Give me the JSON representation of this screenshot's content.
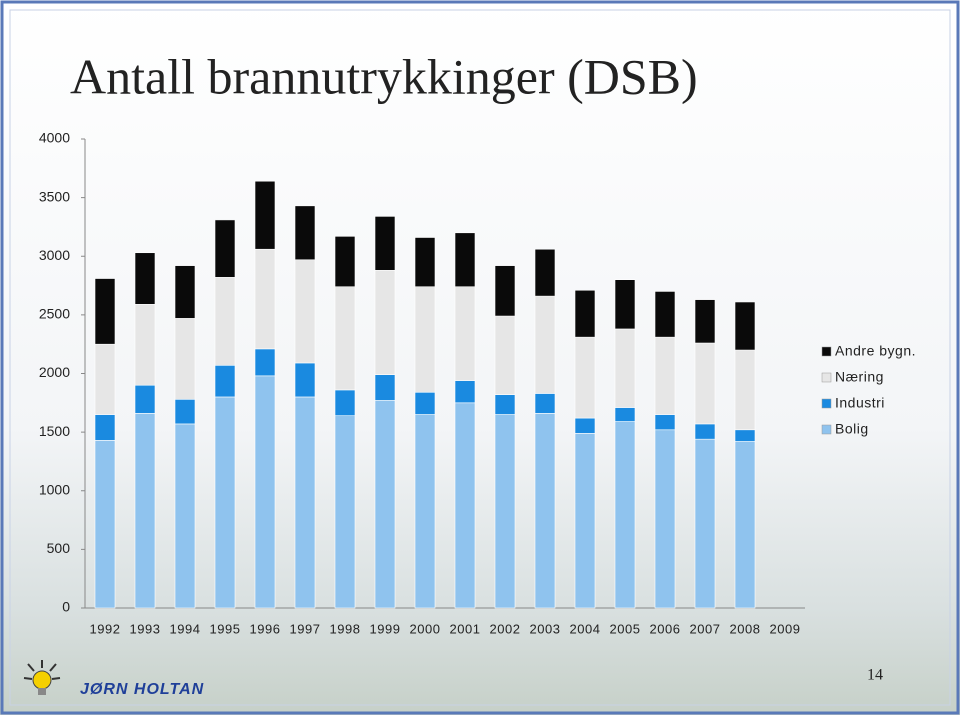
{
  "chart_data": {
    "type": "stacked_bar",
    "title": "Antall brannutrykkinger (DSB)",
    "categories": [
      "1992",
      "1993",
      "1994",
      "1995",
      "1996",
      "1997",
      "1998",
      "1999",
      "2000",
      "2001",
      "2002",
      "2003",
      "2004",
      "2005",
      "2006",
      "2007",
      "2008",
      "2009"
    ],
    "series": [
      {
        "name": "Bolig",
        "color": "#8fc3ee",
        "values": [
          1430,
          1660,
          1570,
          1800,
          1980,
          1800,
          1640,
          1770,
          1650,
          1750,
          1650,
          1660,
          1490,
          1590,
          1520,
          1440,
          1420,
          null
        ]
      },
      {
        "name": "Industri",
        "color": "#1a8ae0",
        "values": [
          220,
          240,
          210,
          270,
          230,
          290,
          220,
          220,
          190,
          190,
          170,
          170,
          130,
          120,
          130,
          130,
          100,
          null
        ]
      },
      {
        "name": "Næring",
        "color": "#e6e6e6",
        "values": [
          600,
          690,
          690,
          750,
          850,
          880,
          880,
          890,
          900,
          800,
          670,
          830,
          690,
          670,
          660,
          690,
          680,
          null
        ]
      },
      {
        "name": "Andre bygn.",
        "color": "#0a0a0a",
        "values": [
          560,
          440,
          450,
          490,
          580,
          460,
          430,
          460,
          420,
          460,
          430,
          400,
          400,
          420,
          390,
          370,
          410,
          null
        ]
      }
    ],
    "ylim": [
      0,
      4000
    ],
    "yticks": [
      0,
      500,
      1000,
      1500,
      2000,
      2500,
      3000,
      3500,
      4000
    ],
    "grid": false,
    "legend": "right"
  },
  "slide": {
    "author": "JØRN HOLTAN",
    "page_number": "14"
  }
}
